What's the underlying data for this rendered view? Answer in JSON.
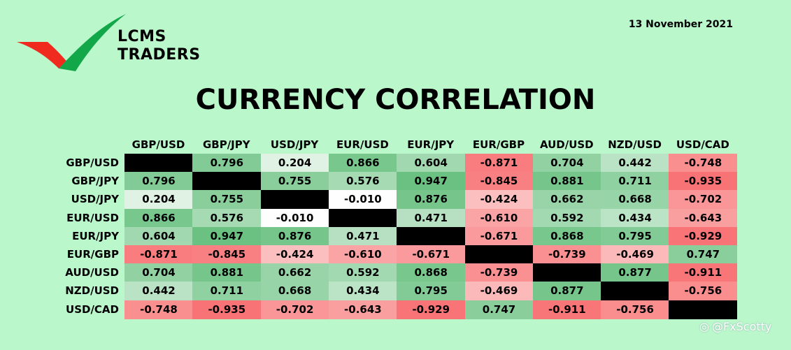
{
  "header": {
    "brand_line1": "LCMS",
    "brand_line2": "TRADERS",
    "date": "13 November 2021",
    "title": "CURRENCY CORRELATION"
  },
  "colors": {
    "background": "#baf7cb",
    "diagonal": "#000000",
    "logo_red": "#f02a1e",
    "logo_green": "#12a84a"
  },
  "watermark": {
    "text": "@FxScotty"
  },
  "chart_data": {
    "type": "heatmap",
    "title": "CURRENCY CORRELATION",
    "columns": [
      "GBP/USD",
      "GBP/JPY",
      "USD/JPY",
      "EUR/USD",
      "EUR/JPY",
      "EUR/GBP",
      "AUD/USD",
      "NZD/USD",
      "USD/CAD"
    ],
    "rows": [
      "GBP/USD",
      "GBP/JPY",
      "USD/JPY",
      "EUR/USD",
      "EUR/JPY",
      "EUR/GBP",
      "AUD/USD",
      "NZD/USD",
      "USD/CAD"
    ],
    "values": [
      [
        null,
        "0.796",
        "0.204",
        "0.866",
        "0.604",
        "-0.871",
        "0.704",
        "0.442",
        "-0.748"
      ],
      [
        "0.796",
        null,
        "0.755",
        "0.576",
        "0.947",
        "-0.845",
        "0.881",
        "0.711",
        "-0.935"
      ],
      [
        "0.204",
        "0.755",
        null,
        "-0.010",
        "0.876",
        "-0.424",
        "0.662",
        "0.668",
        "-0.702"
      ],
      [
        "0.866",
        "0.576",
        "-0.010",
        null,
        "0.471",
        "-0.610",
        "0.592",
        "0.434",
        "-0.643"
      ],
      [
        "0.604",
        "0.947",
        "0.876",
        "0.471",
        null,
        "-0.671",
        "0.868",
        "0.795",
        "-0.929"
      ],
      [
        "-0.871",
        "-0.845",
        "-0.424",
        "-0.610",
        "-0.671",
        null,
        "-0.739",
        "-0.469",
        "0.747"
      ],
      [
        "0.704",
        "0.881",
        "0.662",
        "0.592",
        "0.868",
        "-0.739",
        null,
        "0.877",
        "-0.911"
      ],
      [
        "0.442",
        "0.711",
        "0.668",
        "0.434",
        "0.795",
        "-0.469",
        "0.877",
        null,
        "-0.756"
      ],
      [
        "-0.748",
        "-0.935",
        "-0.702",
        "-0.643",
        "-0.929",
        "0.747",
        "-0.911",
        "-0.756",
        null
      ]
    ],
    "color_scale": {
      "min": -1,
      "max": 1,
      "negative": "#f8696b",
      "zero": "#ffffff",
      "positive": "#63be7b"
    }
  }
}
